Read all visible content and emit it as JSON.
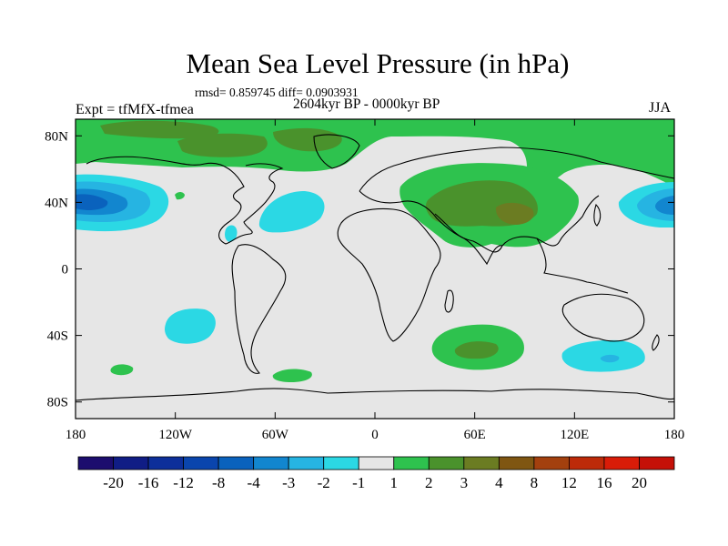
{
  "chart_data": {
    "type": "heatmap",
    "title": "Mean Sea Level Pressure (in hPa)",
    "stats": "rmsd= 0.859745 diff= 0.0903931",
    "period": "2604kyr BP - 0000kyr BP",
    "experiment": "Expt = tfMfX-tfmea",
    "season": "JJA",
    "x_ticks": [
      "180",
      "120W",
      "60W",
      "0",
      "60E",
      "120E",
      "180"
    ],
    "x_tick_values": [
      -180,
      -120,
      -60,
      0,
      60,
      120,
      180
    ],
    "y_ticks": [
      "80N",
      "40N",
      "0",
      "40S",
      "80S"
    ],
    "y_tick_values": [
      80,
      40,
      0,
      -40,
      -80
    ],
    "xlim": [
      -180,
      180
    ],
    "ylim": [
      -90,
      90
    ],
    "colorbar": {
      "levels": [
        "-20",
        "-16",
        "-12",
        "-8",
        "-4",
        "-3",
        "-2",
        "-1",
        "1",
        "2",
        "3",
        "4",
        "8",
        "12",
        "16",
        "20"
      ],
      "colors": [
        "#1c0d6e",
        "#101d85",
        "#0d2f9a",
        "#0a45ad",
        "#0a62bd",
        "#1286cf",
        "#26b4e2",
        "#2bd8e4",
        "#e6e6e6",
        "#2ec24e",
        "#4a922c",
        "#6b7c22",
        "#7f5612",
        "#a3400e",
        "#bd2a09",
        "#d91c08",
        "#c51008"
      ]
    },
    "regions": [
      {
        "name": "North Pacific low",
        "value_range": "-8 to -2",
        "center": [
          -170,
          42
        ]
      },
      {
        "name": "West Pacific low",
        "value_range": "-4 to -2",
        "center": [
          175,
          40
        ]
      },
      {
        "name": "North Atlantic low",
        "value_range": "-2 to -1",
        "center": [
          -47,
          37
        ]
      },
      {
        "name": "Caribbean low",
        "value_range": "-2 to -1",
        "center": [
          -84,
          22
        ]
      },
      {
        "name": "South Pacific low",
        "value_range": "-2 to -1",
        "center": [
          -112,
          -35
        ]
      },
      {
        "name": "Southern Ocean low (south of Australia)",
        "value_range": "-3 to -1",
        "center": [
          135,
          -52
        ]
      },
      {
        "name": "Arctic high",
        "value_range": "1 to 3",
        "center": [
          -60,
          82
        ]
      },
      {
        "name": "Eurasian high",
        "value_range": "1 to 3",
        "center": [
          70,
          45
        ]
      },
      {
        "name": "South Indian Ocean high",
        "value_range": "1 to 3",
        "center": [
          60,
          -48
        ]
      },
      {
        "name": "South Atlantic high",
        "value_range": "1 to 2",
        "center": [
          -43,
          -63
        ]
      },
      {
        "name": "South Pacific small high",
        "value_range": "1 to 2",
        "center": [
          -150,
          -62
        ]
      }
    ]
  }
}
